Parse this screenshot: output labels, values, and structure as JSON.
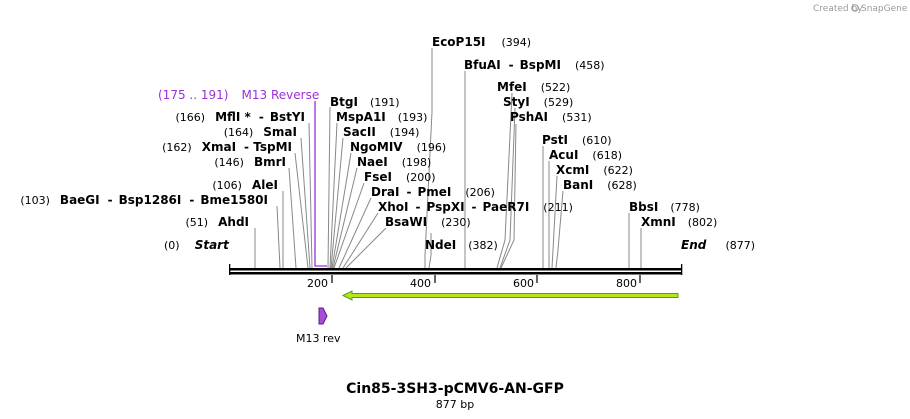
{
  "credit": {
    "prefix": "Created by",
    "brand": "SnapGene"
  },
  "title": "Cin85-3SH3-pCMV6-AN-GFP",
  "subtitle": "877 bp",
  "total_bp": 877,
  "start": {
    "label": "Start",
    "pos": "(0)"
  },
  "end": {
    "label": "End",
    "pos": "(877)"
  },
  "ticks": [
    "200",
    "400",
    "600",
    "800"
  ],
  "primer": {
    "range": "(175 .. 191)",
    "name": "M13 Reverse",
    "feature_label": "M13 rev"
  },
  "colors": {
    "primer": "#9b30d9",
    "feature_fill": "#a64dd6",
    "arrow_fill": "#b5e61d",
    "arrow_stroke": "#5a9a20"
  },
  "enzymes": [
    {
      "label": "EcoP15I",
      "pos": "(394)"
    },
    {
      "label": "BfuAI",
      "sep": "-",
      "label2": "BspMI",
      "pos": "(458)"
    },
    {
      "label": "MfeI",
      "pos": "(522)"
    },
    {
      "label": "StyI",
      "pos": "(529)"
    },
    {
      "label": "PshAI",
      "pos": "(531)"
    },
    {
      "label": "PstI",
      "pos": "(610)"
    },
    {
      "label": "AcuI",
      "pos": "(618)"
    },
    {
      "label": "XcmI",
      "pos": "(622)"
    },
    {
      "label": "BanI",
      "pos": "(628)"
    },
    {
      "label": "BbsI",
      "pos": "(778)"
    },
    {
      "label": "XmnI",
      "pos": "(802)"
    },
    {
      "label": "NdeI",
      "pos": "(382)"
    },
    {
      "label": "BtgI",
      "pos": "(191)"
    },
    {
      "label": "MspA1I",
      "pos": "(193)"
    },
    {
      "label": "SacII",
      "pos": "(194)"
    },
    {
      "label": "NgoMIV",
      "pos": "(196)"
    },
    {
      "label": "NaeI",
      "pos": "(198)"
    },
    {
      "label": "FseI",
      "pos": "(200)"
    },
    {
      "label": "DraI",
      "sep": "-",
      "label2": "PmeI",
      "pos": "(206)"
    },
    {
      "label": "XhoI",
      "sep": "-",
      "label2": "PspXI",
      "sep2": "-",
      "label3": "PaeR7I",
      "pos": "(211)"
    },
    {
      "label": "BsaWI",
      "pos": "(230)"
    },
    {
      "label": "MflI *",
      "sep": "-",
      "label2": "BstYI",
      "pos": "(166)"
    },
    {
      "label": "SmaI",
      "pos": "(164)"
    },
    {
      "label": "XmaI",
      "sep": "-",
      "label2": "TspMI",
      "pos": "(162)"
    },
    {
      "label": "BmrI",
      "pos": "(146)"
    },
    {
      "label": "AleI",
      "pos": "(106)"
    },
    {
      "label": "BaeGI",
      "sep": "-",
      "label2": "Bsp1286I",
      "sep2": "-",
      "label3": "Bme1580I",
      "pos": "(103)"
    },
    {
      "label": "AhdI",
      "pos": "(51)"
    }
  ]
}
